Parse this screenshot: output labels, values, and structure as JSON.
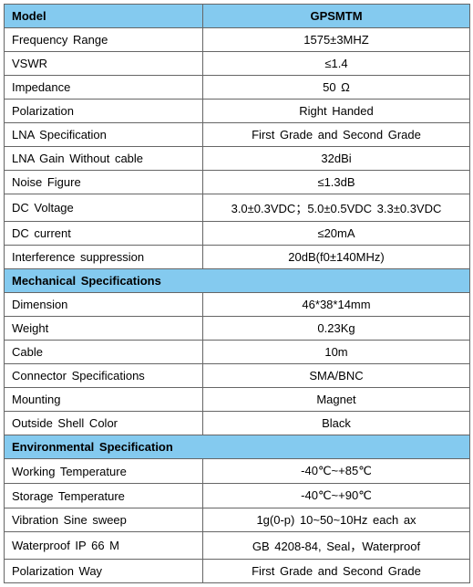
{
  "header": {
    "left": "Model",
    "right": "GPSMTM"
  },
  "rows": [
    {
      "type": "data",
      "label": "Frequency Range",
      "value": "1575±3MHZ"
    },
    {
      "type": "data",
      "label": "VSWR",
      "value": "≤1.4"
    },
    {
      "type": "data",
      "label": "Impedance",
      "value": "50 Ω"
    },
    {
      "type": "data",
      "label": "Polarization",
      "value": "Right Handed"
    },
    {
      "type": "data",
      "label": "LNA Specification",
      "value": "First Grade and Second Grade"
    },
    {
      "type": "data",
      "label": "LNA Gain Without cable",
      "value": "32dBi"
    },
    {
      "type": "data",
      "label": "Noise Figure",
      "value": "≤1.3dB"
    },
    {
      "type": "data",
      "label": "DC Voltage",
      "value": "3.0±0.3VDC；5.0±0.5VDC 3.3±0.3VDC"
    },
    {
      "type": "data",
      "label": "DC current",
      "value": "≤20mA"
    },
    {
      "type": "data",
      "label": "Interference suppression",
      "value": "20dB(f0±140MHz)"
    },
    {
      "type": "section",
      "label": "Mechanical Specifications"
    },
    {
      "type": "data",
      "label": "Dimension",
      "value": "46*38*14mm"
    },
    {
      "type": "data",
      "label": "Weight",
      "value": "0.23Kg"
    },
    {
      "type": "data",
      "label": "Cable",
      "value": "10m"
    },
    {
      "type": "data",
      "label": "Connector Specifications",
      "value": "SMA/BNC"
    },
    {
      "type": "data",
      "label": "Mounting",
      "value": "Magnet"
    },
    {
      "type": "data",
      "label": "Outside Shell Color",
      "value": "Black"
    },
    {
      "type": "section",
      "label": "Environmental Specification"
    },
    {
      "type": "data",
      "label": "Working Temperature",
      "value": "-40℃~+85℃"
    },
    {
      "type": "data",
      "label": "Storage Temperature",
      "value": "-40℃~+90℃"
    },
    {
      "type": "data",
      "label": "Vibration Sine sweep",
      "value": "1g(0-p) 10~50~10Hz each ax"
    },
    {
      "type": "data",
      "label": "Waterproof IP 66 M",
      "value": "GB 4208-84, Seal，Waterproof"
    },
    {
      "type": "data",
      "label": "Polarization Way",
      "value": "First Grade and Second Grade"
    }
  ]
}
